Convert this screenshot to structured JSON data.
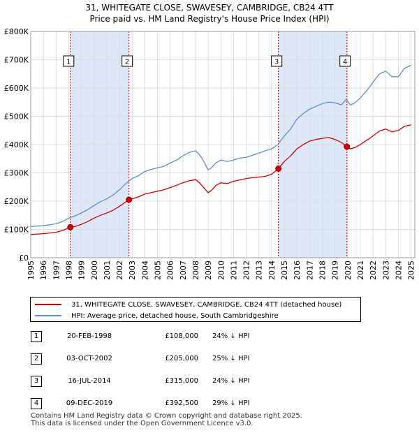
{
  "title_line1": "31, WHITEGATE CLOSE, SWAVESEY, CAMBRIDGE, CB24 4TT",
  "title_line2": "Price paid vs. HM Land Registry's House Price Index (HPI)",
  "colors": {
    "property": "#cc0000",
    "hpi": "#5b8fd0",
    "shade": "#dde7f7",
    "grid": "#dddddd"
  },
  "chart_data": {
    "type": "line",
    "title": "31, WHITEGATE CLOSE, SWAVESEY, CAMBRIDGE, CB24 4TT Price paid vs. HM Land Registry's House Price Index (HPI)",
    "xlabel": "",
    "ylabel": "",
    "xlim": [
      1995,
      2025.3
    ],
    "ylim": [
      0,
      800000
    ],
    "x_ticks": [
      1995,
      1996,
      1997,
      1998,
      1999,
      2000,
      2001,
      2002,
      2003,
      2004,
      2005,
      2006,
      2007,
      2008,
      2009,
      2010,
      2011,
      2012,
      2013,
      2014,
      2015,
      2016,
      2017,
      2018,
      2019,
      2020,
      2021,
      2022,
      2023,
      2024,
      2025
    ],
    "y_ticks": [
      {
        "value": 0,
        "label": "£0"
      },
      {
        "value": 100000,
        "label": "£100K"
      },
      {
        "value": 200000,
        "label": "£200K"
      },
      {
        "value": 300000,
        "label": "£300K"
      },
      {
        "value": 400000,
        "label": "£400K"
      },
      {
        "value": 500000,
        "label": "£500K"
      },
      {
        "value": 600000,
        "label": "£600K"
      },
      {
        "value": 700000,
        "label": "£700K"
      },
      {
        "value": 800000,
        "label": "£800K"
      }
    ],
    "grid": true,
    "shaded_periods": [
      [
        1998.13,
        2002.75
      ],
      [
        2014.54,
        2019.94
      ]
    ],
    "series": [
      {
        "name": "HPI: Average price, detached house, South Cambridgeshire",
        "x": [
          1995,
          1996,
          1997,
          1997.5,
          1998,
          1998.5,
          1999,
          1999.5,
          2000,
          2000.5,
          2001,
          2001.5,
          2002,
          2002.5,
          2003,
          2003.5,
          2004,
          2004.5,
          2005,
          2005.5,
          2006,
          2006.5,
          2007,
          2007.5,
          2008,
          2008.3,
          2008.6,
          2009,
          2009.3,
          2009.6,
          2010,
          2010.5,
          2011,
          2011.5,
          2012,
          2012.5,
          2013,
          2013.5,
          2014,
          2014.5,
          2015,
          2015.5,
          2016,
          2016.5,
          2017,
          2017.5,
          2018,
          2018.5,
          2019,
          2019.5,
          2019.9,
          2020.2,
          2020.6,
          2021,
          2021.5,
          2022,
          2022.5,
          2023,
          2023.5,
          2024,
          2024.5,
          2025
        ],
        "values": [
          110000,
          113000,
          120000,
          128000,
          140000,
          148000,
          158000,
          170000,
          185000,
          198000,
          208000,
          222000,
          240000,
          262000,
          280000,
          290000,
          305000,
          312000,
          318000,
          323000,
          335000,
          345000,
          360000,
          372000,
          378000,
          365000,
          345000,
          310000,
          320000,
          335000,
          345000,
          340000,
          345000,
          352000,
          355000,
          362000,
          370000,
          378000,
          385000,
          400000,
          430000,
          455000,
          490000,
          510000,
          525000,
          535000,
          545000,
          550000,
          548000,
          540000,
          560000,
          540000,
          548000,
          565000,
          590000,
          620000,
          650000,
          660000,
          640000,
          640000,
          670000,
          680000
        ]
      },
      {
        "name": "31, WHITEGATE CLOSE, SWAVESEY, CAMBRIDGE, CB24 4TT (detached house)",
        "x": [
          1995,
          1996,
          1997,
          1997.5,
          1998.13,
          1998.5,
          1999,
          1999.5,
          2000,
          2000.5,
          2001,
          2001.5,
          2002,
          2002.75,
          2003,
          2003.5,
          2004,
          2004.5,
          2005,
          2005.5,
          2006,
          2006.5,
          2007,
          2007.5,
          2008,
          2008.3,
          2008.6,
          2009,
          2009.3,
          2009.6,
          2010,
          2010.5,
          2011,
          2011.5,
          2012,
          2012.5,
          2013,
          2013.5,
          2014,
          2014.54,
          2015,
          2015.5,
          2016,
          2016.5,
          2017,
          2017.5,
          2018,
          2018.5,
          2019,
          2019.5,
          2019.94,
          2020.2,
          2020.6,
          2021,
          2021.5,
          2022,
          2022.5,
          2023,
          2023.5,
          2024,
          2024.5,
          2025
        ],
        "values": [
          82000,
          85000,
          90000,
          96000,
          108000,
          110000,
          118000,
          128000,
          140000,
          150000,
          158000,
          168000,
          182000,
          205000,
          208000,
          215000,
          225000,
          230000,
          235000,
          240000,
          248000,
          256000,
          265000,
          272000,
          276000,
          266000,
          250000,
          230000,
          240000,
          255000,
          265000,
          262000,
          270000,
          275000,
          280000,
          283000,
          285000,
          288000,
          295000,
          315000,
          340000,
          360000,
          385000,
          400000,
          412000,
          418000,
          422000,
          425000,
          418000,
          408000,
          392500,
          385000,
          390000,
          400000,
          415000,
          430000,
          448000,
          455000,
          445000,
          450000,
          465000,
          470000
        ]
      }
    ],
    "sales": [
      {
        "id": "1",
        "x": 1998.13,
        "value": 108000
      },
      {
        "id": "2",
        "x": 2002.75,
        "value": 205000
      },
      {
        "id": "3",
        "x": 2014.54,
        "value": 315000
      },
      {
        "id": "4",
        "x": 2019.94,
        "value": 392500
      }
    ]
  },
  "legend": {
    "property_label": "31, WHITEGATE CLOSE, SWAVESEY, CAMBRIDGE, CB24 4TT (detached house)",
    "hpi_label": "HPI: Average price, detached house, South Cambridgeshire"
  },
  "sales_table": [
    {
      "id": "1",
      "date": "20-FEB-1998",
      "price": "£108,000",
      "hpi": "24% ↓ HPI"
    },
    {
      "id": "2",
      "date": "03-OCT-2002",
      "price": "£205,000",
      "hpi": "25% ↓ HPI"
    },
    {
      "id": "3",
      "date": "16-JUL-2014",
      "price": "£315,000",
      "hpi": "24% ↓ HPI"
    },
    {
      "id": "4",
      "date": "09-DEC-2019",
      "price": "£392,500",
      "hpi": "29% ↓ HPI"
    }
  ],
  "footer": {
    "line1": "Contains HM Land Registry data © Crown copyright and database right 2025.",
    "line2": "This data is licensed under the Open Government Licence v3.0."
  }
}
